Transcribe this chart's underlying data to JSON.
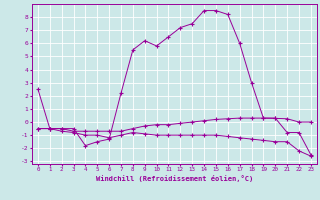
{
  "hours": [
    0,
    1,
    2,
    3,
    4,
    5,
    6,
    7,
    8,
    9,
    10,
    11,
    12,
    13,
    14,
    15,
    16,
    17,
    18,
    19,
    20,
    21,
    22,
    23
  ],
  "temp": [
    2.5,
    -0.5,
    -0.5,
    -0.5,
    -1.8,
    -1.5,
    -1.3,
    2.2,
    5.5,
    6.2,
    5.8,
    6.5,
    7.2,
    7.5,
    8.5,
    8.5,
    8.2,
    6.0,
    3.0,
    0.3,
    0.3,
    -0.8,
    -0.8,
    -2.5
  ],
  "windchill2": [
    -0.5,
    -0.5,
    -0.5,
    -0.7,
    -0.7,
    -0.7,
    -0.7,
    -0.7,
    -0.5,
    -0.3,
    -0.2,
    -0.2,
    -0.1,
    0.0,
    0.1,
    0.2,
    0.25,
    0.3,
    0.3,
    0.3,
    0.28,
    0.25,
    0.0,
    0.0
  ],
  "windchill3": [
    -0.5,
    -0.5,
    -0.7,
    -0.8,
    -1.0,
    -1.0,
    -1.2,
    -1.0,
    -0.8,
    -0.9,
    -1.0,
    -1.0,
    -1.0,
    -1.0,
    -1.0,
    -1.0,
    -1.1,
    -1.2,
    -1.3,
    -1.4,
    -1.5,
    -1.5,
    -2.2,
    -2.6
  ],
  "line_color": "#990099",
  "bg_color": "#cce8e8",
  "grid_color": "#ffffff",
  "ylim": [
    -3.2,
    9.0
  ],
  "yticks": [
    -3,
    -2,
    -1,
    0,
    1,
    2,
    3,
    4,
    5,
    6,
    7,
    8
  ],
  "xlabel": "Windchill (Refroidissement éolien,°C)"
}
